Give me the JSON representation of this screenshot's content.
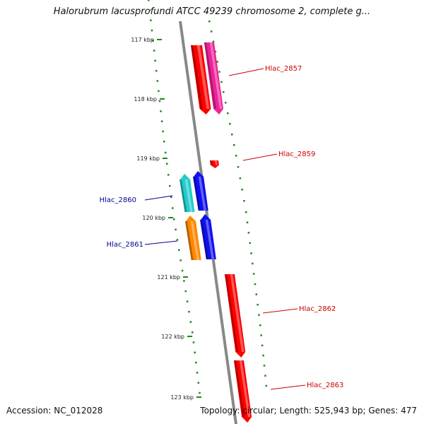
{
  "title": "Halorubrum lacusprofundi ATCC 49239 chromosome 2, complete g...",
  "accession": "Accession: NC_012028",
  "summary": "Topology: circular; Length: 525,943 bp; Genes: 477",
  "colors": {
    "backbone": "#888888",
    "tick": "#1a8a1a",
    "label_forward": "#cc0000",
    "label_reverse": "#000099"
  },
  "ticks": [
    {
      "label": "117 kbp"
    },
    {
      "label": "118 kbp"
    },
    {
      "label": "119 kbp"
    },
    {
      "label": "120 kbp"
    },
    {
      "label": "121 kbp"
    },
    {
      "label": "122 kbp"
    },
    {
      "label": "123 kbp"
    }
  ],
  "genes": [
    {
      "strand": "forward",
      "color": "#ff0000",
      "label": ""
    },
    {
      "strand": "forward",
      "color": "#ee2299",
      "label": "Hlac_2857"
    },
    {
      "strand": "forward",
      "color": "#ff0000",
      "label": "Hlac_2859"
    },
    {
      "strand": "reverse",
      "color": "#22cccc",
      "label": "Hlac_2860"
    },
    {
      "strand": "reverse",
      "color": "#1010ee",
      "label": ""
    },
    {
      "strand": "reverse",
      "color": "#ff8800",
      "label": "Hlac_2861"
    },
    {
      "strand": "reverse",
      "color": "#1010ee",
      "label": ""
    },
    {
      "strand": "forward",
      "color": "#ff0000",
      "label": "Hlac_2862"
    },
    {
      "strand": "forward",
      "color": "#ff0000",
      "label": "Hlac_2863"
    }
  ]
}
